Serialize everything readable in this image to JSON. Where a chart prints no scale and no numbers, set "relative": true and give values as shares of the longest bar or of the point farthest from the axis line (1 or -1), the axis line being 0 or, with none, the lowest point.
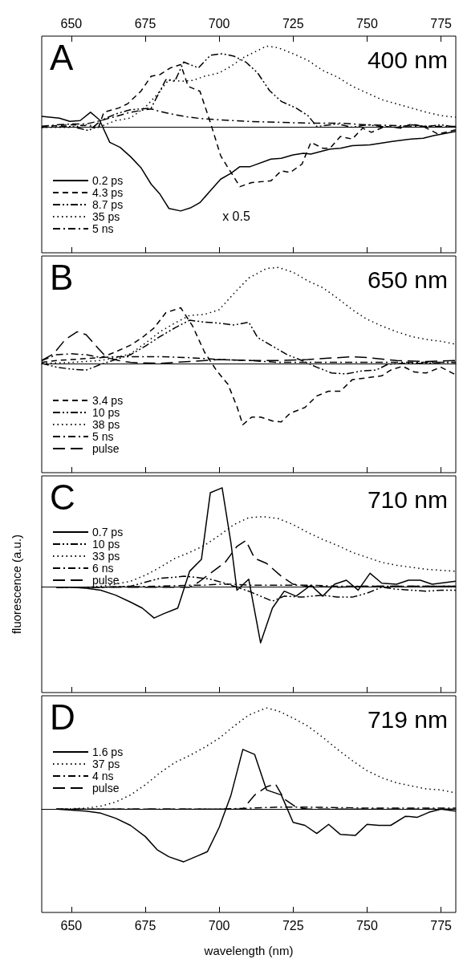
{
  "chart_data": [
    {
      "type": "line",
      "relative": true,
      "xlim": [
        640,
        780
      ],
      "x2lim": [
        640,
        780
      ],
      "x2ticks": [
        650,
        675,
        700,
        725,
        750,
        775
      ],
      "tick_labels": "x",
      "legend": "bottom left",
      "annotations": [
        "A",
        "400 nm",
        "x 0.5"
      ],
      "series": [
        {
          "name": "0.2 ps",
          "color": "#000000",
          "line_style": "solid",
          "x": [
            640,
            646,
            649.5,
            653,
            656.5,
            659.5,
            663,
            666.5,
            670,
            673.5,
            677,
            680,
            683,
            687,
            690.5,
            693.5,
            697,
            700.5,
            704,
            707,
            710.5,
            717.5,
            721,
            725,
            728.5,
            731,
            737.5,
            741,
            745,
            751,
            758.5,
            765,
            769,
            772.5,
            780
          ],
          "values": [
            0.13,
            0.11,
            0.07,
            0.08,
            0.18,
            0.09,
            -0.18,
            -0.24,
            -0.35,
            -0.48,
            -0.68,
            -0.8,
            -0.97,
            -1.0,
            -0.96,
            -0.9,
            -0.76,
            -0.62,
            -0.55,
            -0.47,
            -0.47,
            -0.38,
            -0.37,
            -0.33,
            -0.31,
            -0.32,
            -0.26,
            -0.25,
            -0.22,
            -0.21,
            -0.17,
            -0.14,
            -0.13,
            -0.1,
            -0.05
          ]
        },
        {
          "name": "4.3 ps",
          "color": "#000000",
          "line_style": "dashed",
          "x": [
            640,
            650,
            655,
            659,
            661,
            666,
            669,
            673.5,
            677,
            680,
            683.5,
            687,
            689.5,
            693.5,
            697,
            700.5,
            704,
            707,
            711,
            717.5,
            721,
            724,
            728,
            731,
            735,
            737.5,
            741,
            745,
            748.5,
            751.5,
            756,
            761.5,
            765,
            769,
            774,
            780
          ],
          "values": [
            0.01,
            0.03,
            0.02,
            -0.02,
            0.18,
            0.23,
            0.28,
            0.43,
            0.61,
            0.63,
            0.71,
            0.75,
            0.49,
            0.43,
            0.06,
            -0.34,
            -0.54,
            -0.71,
            -0.66,
            -0.64,
            -0.52,
            -0.54,
            -0.44,
            -0.18,
            -0.25,
            -0.25,
            -0.11,
            -0.14,
            -0.01,
            -0.06,
            0.01,
            -0.01,
            0.04,
            0.01,
            -0.08,
            -0.03
          ]
        },
        {
          "name": "8.7 ps",
          "color": "#000000",
          "line_style": "dashdotdot",
          "x": [
            640,
            650,
            656,
            660,
            665,
            670,
            677,
            682,
            685,
            688,
            693,
            697,
            701,
            705,
            709,
            713,
            717,
            721,
            726,
            730,
            733,
            740,
            745,
            750,
            755,
            760,
            765,
            770,
            775,
            780
          ],
          "values": [
            0,
            0.01,
            -0.04,
            0.08,
            0.16,
            0.21,
            0.23,
            0.57,
            0.55,
            0.78,
            0.71,
            0.86,
            0.88,
            0.85,
            0.78,
            0.65,
            0.44,
            0.31,
            0.23,
            0.14,
            0.01,
            0.04,
            0,
            0.03,
            0.01,
            0,
            0.03,
            0.01,
            0.03,
            0
          ]
        },
        {
          "name": "35 ps",
          "color": "#000000",
          "line_style": "dotted",
          "x": [
            640,
            650,
            655,
            660,
            665,
            670,
            675,
            679,
            683,
            687,
            691,
            695,
            700,
            704,
            708,
            712,
            716,
            720,
            725,
            730,
            735,
            740,
            745,
            750,
            755,
            760,
            765,
            770,
            775,
            780
          ],
          "values": [
            0,
            0,
            0.03,
            0.01,
            0.08,
            0.11,
            0.24,
            0.39,
            0.57,
            0.55,
            0.56,
            0.61,
            0.65,
            0.73,
            0.83,
            0.9,
            0.97,
            0.95,
            0.88,
            0.8,
            0.68,
            0.6,
            0.49,
            0.41,
            0.33,
            0.28,
            0.23,
            0.18,
            0.14,
            0.12
          ]
        },
        {
          "name": "5 ns",
          "color": "#000000",
          "line_style": "dashdot",
          "x": [
            640,
            645,
            650,
            655,
            660,
            665,
            670,
            675,
            677,
            680,
            685,
            690,
            695,
            700,
            705,
            710,
            720,
            730,
            740,
            750,
            760,
            770,
            780
          ],
          "values": [
            0.01,
            0.03,
            0.04,
            0.04,
            0.08,
            0.13,
            0.18,
            0.21,
            0.22,
            0.19,
            0.15,
            0.12,
            0.1,
            0.09,
            0.08,
            0.07,
            0.06,
            0.05,
            0.05,
            0.03,
            0.02,
            0.01,
            0.01
          ]
        }
      ]
    },
    {
      "type": "line",
      "relative": true,
      "xlim": [
        640,
        780
      ],
      "xticks": [
        650,
        675,
        700,
        725,
        750,
        775
      ],
      "tick_labels": false,
      "legend": "bottom left",
      "annotations": [
        "B",
        "650 nm"
      ],
      "series": [
        {
          "name": "3.4 ps",
          "color": "#000000",
          "line_style": "dashed",
          "x": [
            640,
            645,
            650,
            655,
            660,
            665,
            670,
            674,
            678,
            682,
            687,
            691,
            695,
            699,
            703,
            706,
            708,
            711,
            714,
            718,
            721,
            724,
            729,
            733,
            737,
            741,
            745,
            750,
            755,
            758,
            762,
            766,
            770,
            775,
            780
          ],
          "values": [
            0.01,
            0.03,
            0.04,
            0.05,
            0.06,
            0.12,
            0.19,
            0.27,
            0.37,
            0.53,
            0.58,
            0.39,
            0.12,
            -0.07,
            -0.22,
            -0.45,
            -0.64,
            -0.56,
            -0.56,
            -0.6,
            -0.61,
            -0.52,
            -0.46,
            -0.34,
            -0.29,
            -0.29,
            -0.17,
            -0.15,
            -0.13,
            -0.07,
            -0.03,
            -0.09,
            -0.1,
            -0.04,
            -0.12
          ]
        },
        {
          "name": "10 ps",
          "color": "#000000",
          "line_style": "dashdotdot",
          "x": [
            640,
            645,
            650,
            655,
            660,
            665,
            670,
            675,
            680,
            685,
            690,
            695,
            700,
            705,
            710,
            713,
            718,
            723,
            728,
            733,
            738,
            743,
            748,
            753,
            757,
            762,
            768,
            775,
            780
          ],
          "values": [
            0,
            -0.04,
            -0.06,
            -0.07,
            -0.01,
            0.04,
            0.09,
            0.18,
            0.28,
            0.37,
            0.45,
            0.43,
            0.42,
            0.4,
            0.43,
            0.27,
            0.18,
            0.09,
            0.03,
            -0.04,
            -0.1,
            -0.11,
            -0.08,
            -0.07,
            -0.01,
            0,
            0,
            0.01,
            0.01
          ]
        },
        {
          "name": "38 ps",
          "color": "#000000",
          "line_style": "dotted",
          "x": [
            640,
            650,
            660,
            665,
            670,
            675,
            680,
            685,
            690,
            695,
            700,
            705,
            710,
            716,
            720,
            725,
            730,
            735,
            740,
            745,
            750,
            755,
            760,
            765,
            770,
            775,
            780
          ],
          "values": [
            0,
            0.01,
            0.03,
            0.06,
            0.1,
            0.21,
            0.33,
            0.42,
            0.5,
            0.51,
            0.56,
            0.73,
            0.89,
            0.99,
            1.0,
            0.95,
            0.86,
            0.79,
            0.68,
            0.56,
            0.46,
            0.39,
            0.33,
            0.28,
            0.25,
            0.23,
            0.2
          ]
        },
        {
          "name": "5 ns",
          "color": "#000000",
          "line_style": "dashdot",
          "x": [
            640,
            645,
            650,
            655,
            660,
            665,
            670,
            680,
            690,
            700,
            710,
            720,
            730,
            740,
            750,
            760,
            770,
            780
          ],
          "values": [
            0.03,
            0.09,
            0.1,
            0.09,
            0.06,
            0.07,
            0.07,
            0.07,
            0.06,
            0.04,
            0.03,
            0.01,
            0.01,
            0.01,
            0.01,
            0.01,
            0.01,
            0.01
          ]
        },
        {
          "name": "pulse",
          "color": "#000000",
          "line_style": "longdash",
          "x": [
            640,
            644,
            648,
            652,
            655,
            659,
            662,
            666,
            670,
            680,
            690,
            700,
            710,
            720,
            730,
            740,
            745,
            750,
            760,
            770,
            780
          ],
          "values": [
            0.03,
            0.1,
            0.25,
            0.33,
            0.3,
            0.16,
            0.06,
            0.03,
            0.01,
            0,
            0.02,
            0.04,
            0.03,
            0.03,
            0.04,
            0.06,
            0.07,
            0.06,
            0.03,
            0.02,
            0.03
          ]
        }
      ]
    },
    {
      "type": "line",
      "relative": true,
      "xlim": [
        640,
        780
      ],
      "xticks": [
        650,
        675,
        700,
        725,
        750,
        775
      ],
      "tick_labels": false,
      "legend": "top left",
      "annotations": [
        "C",
        "710 nm"
      ],
      "ylabel": "fluorescence (a.u.)",
      "series": [
        {
          "name": "0.7 ps",
          "color": "#000000",
          "line_style": "solid",
          "x": [
            645,
            650,
            655,
            660,
            665,
            670,
            674,
            678,
            681,
            686,
            690,
            694,
            697,
            701,
            704,
            706,
            710,
            714,
            718,
            722,
            726,
            731,
            735,
            739,
            743,
            747,
            751,
            755,
            760,
            764,
            768,
            772,
            780
          ],
          "values": [
            0,
            0,
            -0.01,
            -0.03,
            -0.08,
            -0.15,
            -0.21,
            -0.31,
            -0.27,
            -0.21,
            0.16,
            0.28,
            0.95,
            1.0,
            0.44,
            -0.03,
            0.08,
            -0.56,
            -0.21,
            -0.04,
            -0.09,
            0.02,
            -0.09,
            0.03,
            0.07,
            -0.03,
            0.14,
            0.04,
            0.03,
            0.07,
            0.07,
            0.03,
            0.06
          ]
        },
        {
          "name": "10 ps",
          "color": "#000000",
          "line_style": "dashdotdot",
          "x": [
            645,
            660,
            670,
            675,
            680,
            685,
            688,
            692,
            697,
            702,
            706,
            710,
            714,
            718,
            722,
            728,
            735,
            740,
            745,
            750,
            755,
            760,
            765,
            770,
            775,
            780
          ],
          "values": [
            0,
            0,
            0.01,
            0.05,
            0.09,
            0.1,
            0.11,
            0.1,
            0.08,
            0.04,
            0,
            -0.04,
            -0.09,
            -0.14,
            -0.09,
            -0.1,
            -0.08,
            -0.1,
            -0.1,
            -0.06,
            0,
            -0.02,
            -0.03,
            -0.04,
            -0.03,
            -0.03
          ]
        },
        {
          "name": "33 ps",
          "color": "#000000",
          "line_style": "dotted",
          "x": [
            645,
            655,
            660,
            665,
            670,
            675,
            680,
            685,
            690,
            695,
            700,
            705,
            710,
            715,
            720,
            725,
            730,
            735,
            740,
            745,
            750,
            755,
            760,
            765,
            770,
            775,
            780
          ],
          "values": [
            0,
            0,
            0.01,
            0.03,
            0.06,
            0.12,
            0.2,
            0.29,
            0.35,
            0.42,
            0.52,
            0.63,
            0.7,
            0.71,
            0.69,
            0.63,
            0.55,
            0.48,
            0.42,
            0.35,
            0.3,
            0.25,
            0.22,
            0.2,
            0.18,
            0.17,
            0.16
          ]
        },
        {
          "name": "6 ns",
          "color": "#000000",
          "line_style": "dashdot",
          "x": [
            645,
            660,
            680,
            690,
            695,
            700,
            705,
            710,
            720,
            730,
            740,
            750,
            760,
            770,
            780
          ],
          "values": [
            0,
            0,
            0.01,
            0.02,
            0.02,
            0.03,
            0.03,
            0.02,
            0.02,
            0.02,
            0.01,
            0.01,
            0.01,
            0.01,
            0.01
          ]
        },
        {
          "name": "pulse",
          "color": "#000000",
          "line_style": "longdash",
          "x": [
            645,
            680,
            690,
            693,
            697,
            702,
            706,
            709,
            712,
            716,
            721,
            725,
            730,
            740,
            750,
            760,
            770,
            780
          ],
          "values": [
            0,
            0,
            0,
            0.05,
            0.14,
            0.25,
            0.41,
            0.47,
            0.29,
            0.24,
            0.11,
            0.03,
            0.01,
            0,
            0.01,
            0.01,
            0.01,
            0.01
          ]
        }
      ]
    },
    {
      "type": "line",
      "relative": true,
      "xlim": [
        640,
        780
      ],
      "xticks": [
        650,
        675,
        700,
        725,
        750,
        775
      ],
      "tick_labels": "x",
      "legend": "top left",
      "annotations": [
        "D",
        "719 nm"
      ],
      "xlabel": "wavelength (nm)",
      "series": [
        {
          "name": "1.6 ps",
          "color": "#000000",
          "line_style": "solid",
          "x": [
            645,
            650,
            655,
            660,
            665,
            670,
            675,
            679,
            683,
            688,
            692,
            696,
            700,
            704,
            708,
            712,
            716,
            721,
            725,
            729,
            733,
            737,
            741,
            746,
            750,
            754,
            758,
            763,
            767,
            771,
            775,
            780
          ],
          "values": [
            0,
            -0.01,
            -0.02,
            -0.04,
            -0.09,
            -0.16,
            -0.27,
            -0.4,
            -0.47,
            -0.52,
            -0.47,
            -0.42,
            -0.18,
            0.14,
            0.59,
            0.54,
            0.19,
            0.14,
            -0.13,
            -0.16,
            -0.24,
            -0.15,
            -0.25,
            -0.26,
            -0.15,
            -0.16,
            -0.16,
            -0.07,
            -0.08,
            -0.03,
            0,
            -0.02
          ]
        },
        {
          "name": "37 ps",
          "color": "#000000",
          "line_style": "dotted",
          "x": [
            645,
            655,
            660,
            665,
            670,
            675,
            680,
            685,
            690,
            695,
            700,
            705,
            710,
            716,
            720,
            725,
            730,
            735,
            740,
            745,
            750,
            755,
            760,
            765,
            770,
            775,
            780
          ],
          "values": [
            0,
            0.01,
            0.03,
            0.07,
            0.14,
            0.24,
            0.36,
            0.46,
            0.53,
            0.61,
            0.7,
            0.82,
            0.93,
            1.0,
            0.97,
            0.9,
            0.82,
            0.71,
            0.59,
            0.48,
            0.38,
            0.31,
            0.26,
            0.23,
            0.2,
            0.19,
            0.16
          ]
        },
        {
          "name": "4 ns",
          "color": "#000000",
          "line_style": "dashdot",
          "x": [
            645,
            680,
            700,
            710,
            720,
            730,
            750,
            780
          ],
          "values": [
            0,
            0,
            0,
            0.01,
            0.02,
            0.02,
            0.01,
            0.01
          ]
        },
        {
          "name": "pulse",
          "color": "#000000",
          "line_style": "longdash",
          "x": [
            645,
            700,
            708,
            712,
            716,
            719,
            722,
            726,
            730,
            780
          ],
          "values": [
            0,
            0,
            0,
            0.14,
            0.22,
            0.25,
            0.1,
            0.02,
            0,
            0
          ]
        }
      ]
    }
  ]
}
